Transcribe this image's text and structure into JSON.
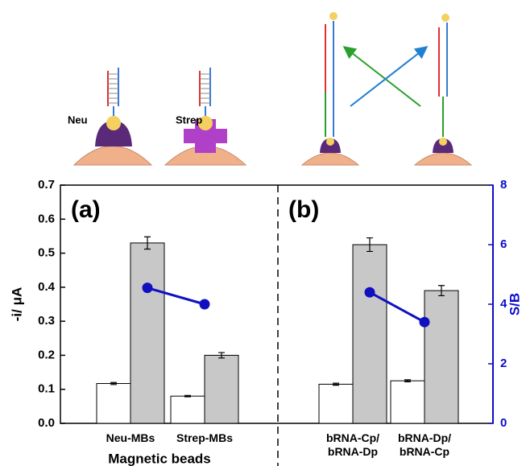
{
  "illustration": {
    "labels": [
      "Neu",
      "Strep"
    ]
  },
  "chart_data": {
    "type": "bar",
    "categories": [
      "Neu-MBs",
      "Strep-MBs",
      "bRNA-Cp/\nbRNA-Dp",
      "bRNA-Dp/\nbRNA-Cp"
    ],
    "panel_labels": [
      "(a)",
      "(b)"
    ],
    "xlabel": "Magnetic beads",
    "ylabel": "-i/ μA",
    "y2label": "S/B",
    "ylim": [
      0,
      0.7
    ],
    "yticks": [
      {
        "value": 0,
        "label": "0.0"
      },
      0.1,
      0.2,
      0.3,
      0.4,
      0.5,
      0.6,
      0.7
    ],
    "y2lim": [
      0,
      8
    ],
    "y2ticks": [
      0,
      2,
      4,
      6,
      8
    ],
    "y2color": "#0a0acc",
    "series": [
      {
        "type": "bar",
        "color": "#ffffff",
        "values": [
          0.117,
          0.08,
          0.115,
          0.125
        ],
        "errors": [
          0.003,
          0.002,
          0.003,
          0.003
        ]
      },
      {
        "type": "bar",
        "color": "#c8c8c8",
        "values": [
          0.53,
          0.2,
          0.525,
          0.39
        ],
        "errors": [
          0.018,
          0.008,
          0.02,
          0.015
        ]
      },
      {
        "type": "line",
        "axis": "y2",
        "color": "#1010c0",
        "values": [
          4.55,
          4.0,
          null,
          null
        ]
      },
      {
        "type": "line",
        "axis": "y2",
        "color": "#1010c0",
        "values": [
          null,
          null,
          4.4,
          3.4
        ]
      }
    ]
  }
}
